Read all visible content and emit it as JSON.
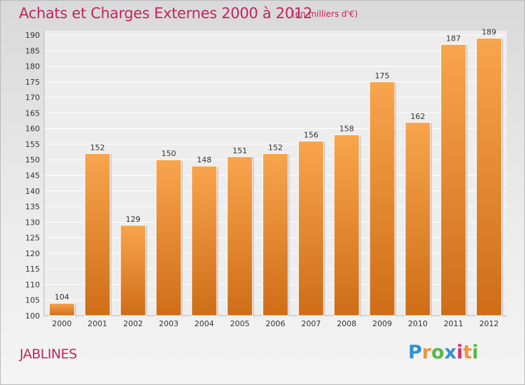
{
  "chart_data": {
    "type": "bar",
    "title": "Achats et Charges Externes 2000 à 2012",
    "subtitle": "(en milliers d'€)",
    "xlabel": "",
    "ylabel": "",
    "ylim": [
      100,
      190
    ],
    "yticks": [
      100,
      105,
      110,
      115,
      120,
      125,
      130,
      135,
      140,
      145,
      150,
      155,
      160,
      165,
      170,
      175,
      180,
      185,
      190
    ],
    "categories": [
      "2000",
      "2001",
      "2002",
      "2003",
      "2004",
      "2005",
      "2006",
      "2007",
      "2008",
      "2009",
      "2010",
      "2011",
      "2012"
    ],
    "values": [
      104,
      152,
      129,
      150,
      148,
      151,
      152,
      156,
      158,
      175,
      162,
      187,
      189
    ],
    "grid": true,
    "legend": "none",
    "bar_color": "#f0953f"
  },
  "commune": "JABLINES",
  "logo": {
    "letters": [
      "P",
      "r",
      "o",
      "x",
      "i",
      "t",
      "i"
    ],
    "colors": [
      "#2f8fd8",
      "#f0953f",
      "#57b947",
      "#2f8fd8",
      "#d8326e",
      "#f0953f",
      "#57b947"
    ]
  }
}
